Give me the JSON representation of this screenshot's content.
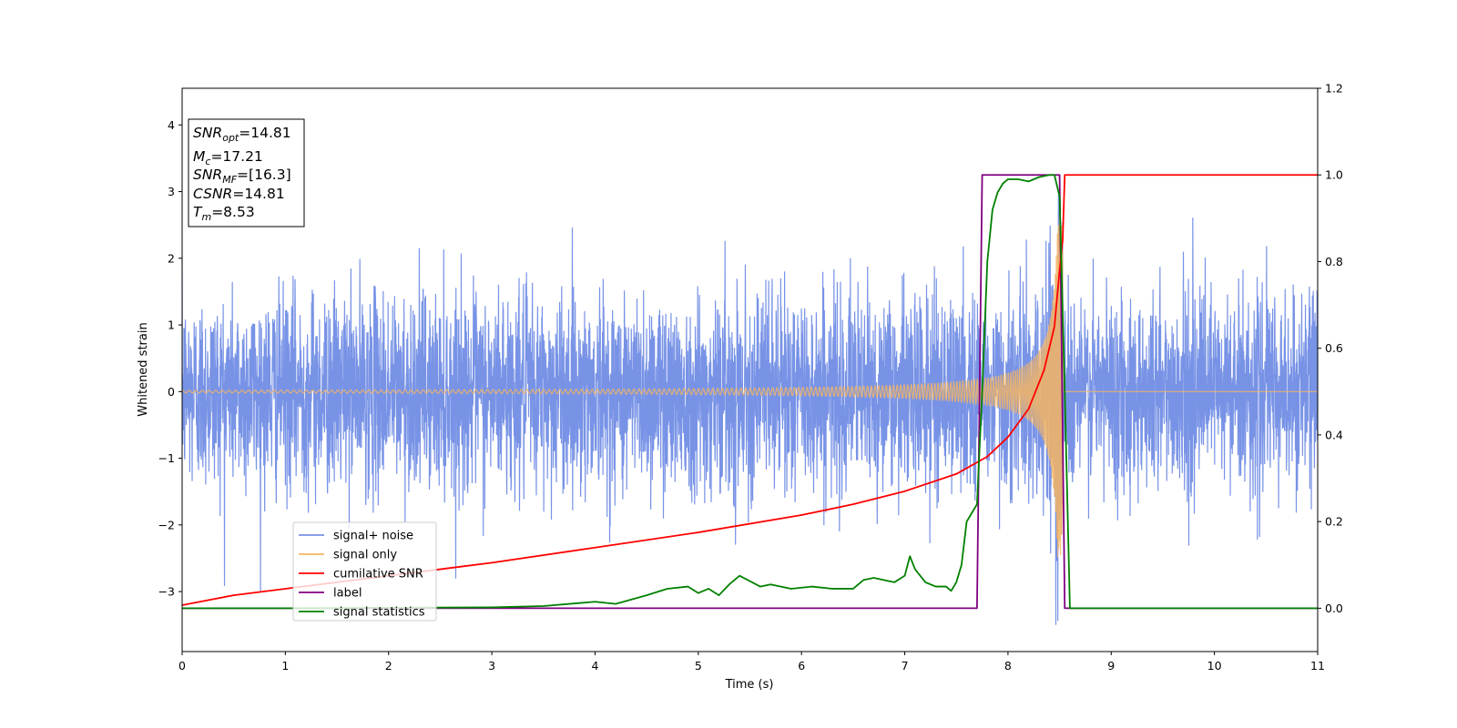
{
  "chart_data": {
    "type": "line",
    "xlabel": "Time (s)",
    "ylabel": "Whitened strain",
    "x_range": [
      0,
      11
    ],
    "y_left_range": [
      -3.9,
      4.55
    ],
    "y_right_range": [
      -0.1,
      1.2
    ],
    "x_ticks": [
      0,
      1,
      2,
      3,
      4,
      5,
      6,
      7,
      8,
      9,
      10,
      11
    ],
    "y_left_ticks": [
      -3,
      -2,
      -1,
      0,
      1,
      2,
      3,
      4
    ],
    "y_left_tick_labels": [
      "−3",
      "−2",
      "−1",
      "0",
      "1",
      "2",
      "3",
      "4"
    ],
    "y_right_ticks": [
      0.0,
      0.2,
      0.4,
      0.6,
      0.8,
      1.0,
      1.2
    ],
    "y_right_tick_labels": [
      "0.0",
      "0.2",
      "0.4",
      "0.6",
      "0.8",
      "1.0",
      "1.2"
    ],
    "grid": false,
    "legend_position": "lower-left",
    "legend": [
      "signal+ noise",
      "signal only",
      "cumilative SNR",
      "label",
      "signal statistics"
    ],
    "colors": {
      "signal_noise": "#7893e6",
      "signal_only": "#f5b563",
      "cumulative_snr": "#ff0000",
      "label": "#800080",
      "signal_statistics": "#008000"
    },
    "annotations": [
      {
        "sym": "SNR",
        "sub": "opt",
        "value": "=14.81"
      },
      {
        "sym": "M",
        "sub": "c",
        "value": "=17.21"
      },
      {
        "sym": "SNR",
        "sub": "MF",
        "value": "=[16.3]"
      },
      {
        "sym": "CSNR",
        "sub": "",
        "value": "=14.81"
      },
      {
        "sym": "T",
        "sub": "m",
        "value": "=8.53"
      }
    ],
    "signal_noise": {
      "axis": "left",
      "range_x": [
        0,
        11
      ],
      "std": 0.75,
      "description_stats": {
        "min": -3.5,
        "max": 2.9
      }
    },
    "signal_only": {
      "axis": "left",
      "t_merger": 8.53,
      "amp_start": 0.02,
      "amp_peak": 2.5
    },
    "cumulative_snr": {
      "axis": "right",
      "x": [
        0,
        0.5,
        1,
        2,
        3,
        4,
        5,
        6,
        6.5,
        7,
        7.5,
        7.8,
        8.0,
        8.2,
        8.35,
        8.45,
        8.5,
        8.53,
        8.55,
        11
      ],
      "y": [
        0.007,
        0.03,
        0.045,
        0.075,
        0.105,
        0.14,
        0.175,
        0.215,
        0.24,
        0.27,
        0.31,
        0.35,
        0.395,
        0.46,
        0.55,
        0.65,
        0.78,
        0.85,
        1.0,
        1.0
      ]
    },
    "label": {
      "axis": "right",
      "x": [
        0,
        7.7,
        7.75,
        8.5,
        8.55,
        11
      ],
      "y": [
        0,
        0,
        1,
        1,
        0,
        0
      ]
    },
    "signal_statistics": {
      "axis": "right",
      "x": [
        0,
        1,
        2,
        3,
        3.5,
        4,
        4.2,
        4.5,
        4.7,
        4.9,
        5.0,
        5.1,
        5.2,
        5.3,
        5.4,
        5.6,
        5.7,
        5.9,
        6.1,
        6.3,
        6.5,
        6.6,
        6.7,
        6.9,
        7.0,
        7.05,
        7.1,
        7.2,
        7.3,
        7.4,
        7.45,
        7.5,
        7.55,
        7.6,
        7.65,
        7.7,
        7.75,
        7.8,
        7.85,
        7.9,
        7.95,
        8.0,
        8.1,
        8.2,
        8.3,
        8.4,
        8.45,
        8.5,
        8.55,
        8.6,
        11
      ],
      "y": [
        0,
        0,
        0.001,
        0.002,
        0.005,
        0.015,
        0.01,
        0.03,
        0.045,
        0.05,
        0.035,
        0.045,
        0.03,
        0.055,
        0.075,
        0.05,
        0.055,
        0.045,
        0.05,
        0.045,
        0.045,
        0.065,
        0.07,
        0.06,
        0.075,
        0.12,
        0.09,
        0.06,
        0.05,
        0.05,
        0.04,
        0.06,
        0.1,
        0.2,
        0.22,
        0.24,
        0.5,
        0.8,
        0.92,
        0.96,
        0.98,
        0.99,
        0.99,
        0.985,
        0.995,
        1.0,
        1.0,
        0.95,
        0.5,
        0.0,
        0.0
      ]
    }
  }
}
